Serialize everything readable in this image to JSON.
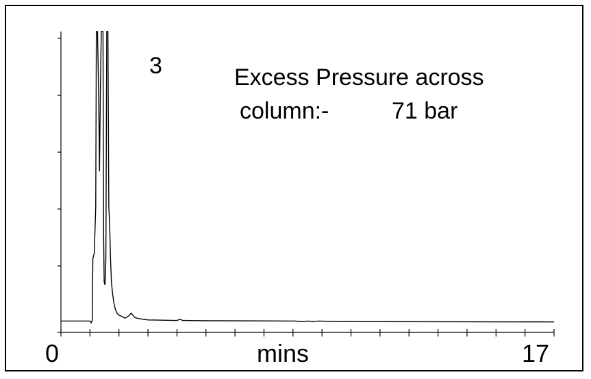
{
  "chart_data": {
    "type": "line",
    "annotations": {
      "peak_label": "3",
      "pressure_line1": "Excess Pressure across",
      "pressure_line2": "column:-",
      "pressure_value": "71 bar"
    },
    "xlabel": "mins",
    "ylabel": "",
    "x_tick_labels": [
      "0",
      "17"
    ],
    "xlim": [
      0,
      17
    ],
    "ylim": [
      0,
      100
    ],
    "x_minor_tick_step": 1,
    "y_minor_ticks": 5,
    "series": [
      {
        "values": [
          [
            0.0,
            0.6
          ],
          [
            1.0,
            0.6
          ],
          [
            1.04,
            0.0
          ],
          [
            1.08,
            0.8
          ],
          [
            1.1,
            22.0
          ],
          [
            1.15,
            24.0
          ],
          [
            1.2,
            40.0
          ],
          [
            1.22,
            100.0
          ],
          [
            1.26,
            100.0
          ],
          [
            1.3,
            78.0
          ],
          [
            1.33,
            52.0
          ],
          [
            1.36,
            80.0
          ],
          [
            1.39,
            100.0
          ],
          [
            1.45,
            100.0
          ],
          [
            1.47,
            30.0
          ],
          [
            1.49,
            14.0
          ],
          [
            1.52,
            13.0
          ],
          [
            1.55,
            22.0
          ],
          [
            1.58,
            100.0
          ],
          [
            1.62,
            100.0
          ],
          [
            1.65,
            40.0
          ],
          [
            1.68,
            33.0
          ],
          [
            1.71,
            22.0
          ],
          [
            1.74,
            14.0
          ],
          [
            1.78,
            10.0
          ],
          [
            1.83,
            6.5
          ],
          [
            1.88,
            4.5
          ],
          [
            1.94,
            3.2
          ],
          [
            2.0,
            2.6
          ],
          [
            2.1,
            2.2
          ],
          [
            2.2,
            1.6
          ],
          [
            2.28,
            2.0
          ],
          [
            2.35,
            2.5
          ],
          [
            2.42,
            3.3
          ],
          [
            2.48,
            2.6
          ],
          [
            2.55,
            1.8
          ],
          [
            2.7,
            1.4
          ],
          [
            3.0,
            1.0
          ],
          [
            3.5,
            0.9
          ],
          [
            4.0,
            0.8
          ],
          [
            4.1,
            1.2
          ],
          [
            4.2,
            0.8
          ],
          [
            5.0,
            0.7
          ],
          [
            8.1,
            0.6
          ],
          [
            8.3,
            0.4
          ],
          [
            8.5,
            0.6
          ],
          [
            8.7,
            0.4
          ],
          [
            8.9,
            0.6
          ],
          [
            9.3,
            0.45
          ],
          [
            10.0,
            0.4
          ],
          [
            17.0,
            0.3
          ]
        ]
      }
    ]
  }
}
